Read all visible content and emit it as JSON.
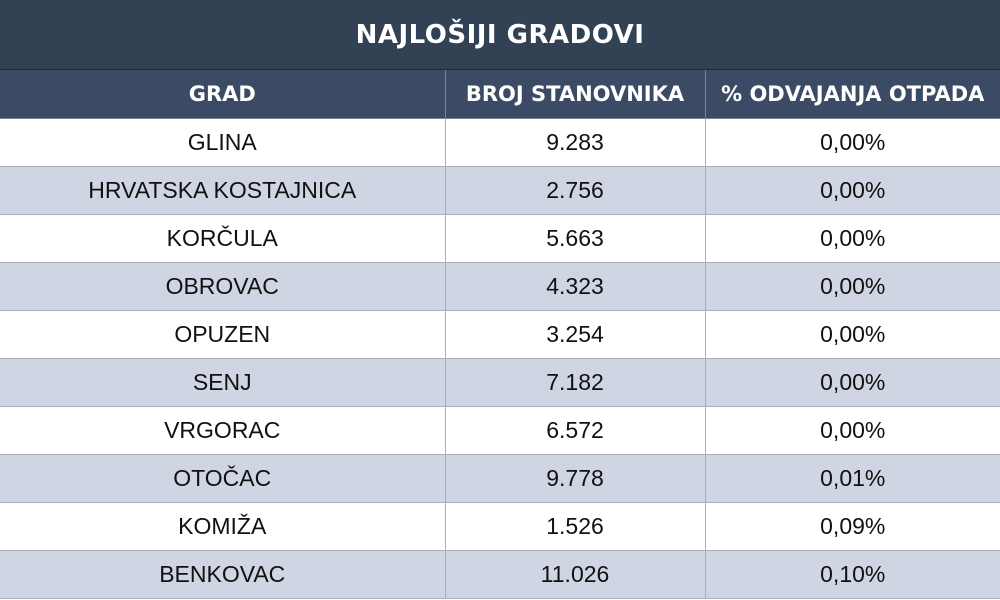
{
  "chart_data": {
    "type": "table",
    "title": "NAJLOŠIJI GRADOVI",
    "columns": [
      "GRAD",
      "BROJ STANOVNIKA",
      "% ODVAJANJA OTPADA"
    ],
    "rows": [
      [
        "GLINA",
        "9.283",
        "0,00%"
      ],
      [
        "HRVATSKA KOSTAJNICA",
        "2.756",
        "0,00%"
      ],
      [
        "KORČULA",
        "5.663",
        "0,00%"
      ],
      [
        "OBROVAC",
        "4.323",
        "0,00%"
      ],
      [
        "OPUZEN",
        "3.254",
        "0,00%"
      ],
      [
        "SENJ",
        "7.182",
        "0,00%"
      ],
      [
        "VRGORAC",
        "6.572",
        "0,00%"
      ],
      [
        "OTOČAC",
        "9.778",
        "0,01%"
      ],
      [
        "KOMIŽA",
        "1.526",
        "0,09%"
      ],
      [
        "BENKOVAC",
        "11.026",
        "0,10%"
      ]
    ]
  },
  "colors": {
    "title_bg": "#334154",
    "header_bg": "#3c4b65",
    "row_alt_bg": "#cfd5e3",
    "row_bg": "#ffffff"
  }
}
